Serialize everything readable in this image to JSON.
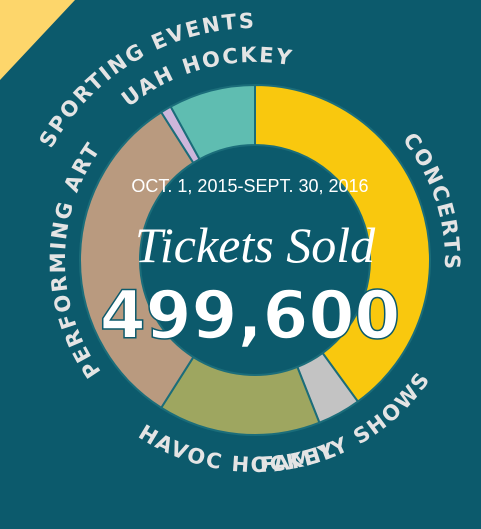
{
  "chart_data": {
    "type": "donut",
    "subtitle": "OCT. 1, 2015-SEPT. 30, 2016",
    "title": "Tickets Sold",
    "total": "499,600",
    "categories": [
      "CONCERTS",
      "FAMILY SHOWS",
      "HAVOC HOCKEY",
      "PERFORMING ART",
      "SPORTING EVENTS",
      "UAH HOCKEY"
    ],
    "values": [
      40,
      4,
      15,
      32,
      1,
      8
    ],
    "colors": [
      "#f9c80e",
      "#c3c3c3",
      "#9ea660",
      "#b99a7f",
      "#cdb6db",
      "#5fbdb1"
    ]
  }
}
